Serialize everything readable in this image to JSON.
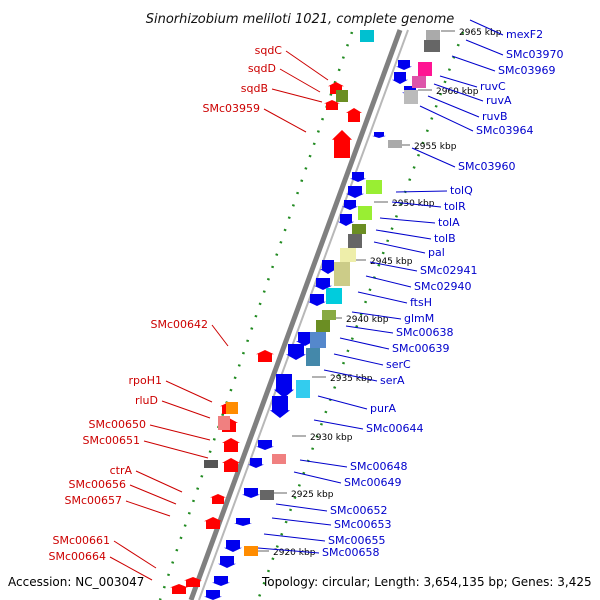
{
  "title": "Sinorhizobium meliloti 1021, complete genome",
  "footer": {
    "accession": "Accession: NC_003047",
    "topology": "Topology: circular; Length: 3,654,135 bp; Genes: 3,425"
  },
  "colors": {
    "backbone": "#808080",
    "minus_label": "#cc0000",
    "plus_label": "#0000cc",
    "minus_arrow": "#ff0000",
    "plus_arrow": "#0000ee",
    "dash": "#228b22"
  },
  "kbp_ticks": [
    "2965 kbp",
    "2960 kbp",
    "2955 kbp",
    "2950 kbp",
    "2945 kbp",
    "2940 kbp",
    "2935 kbp",
    "2930 kbp",
    "2925 kbp",
    "2920 kbp"
  ],
  "left_genes": [
    {
      "name": "sqdC",
      "color": "#cc0000"
    },
    {
      "name": "sqdD",
      "color": "#cc0000"
    },
    {
      "name": "sqdB",
      "color": "#cc0000"
    },
    {
      "name": "SMc03959",
      "color": "#cc0000"
    },
    {
      "name": "SMc00642",
      "color": "#cc0000"
    },
    {
      "name": "rpoH1",
      "color": "#cc0000"
    },
    {
      "name": "rluD",
      "color": "#cc0000"
    },
    {
      "name": "SMc00650",
      "color": "#cc0000"
    },
    {
      "name": "SMc00651",
      "color": "#cc0000"
    },
    {
      "name": "ctrA",
      "color": "#cc0000"
    },
    {
      "name": "SMc00656",
      "color": "#cc0000"
    },
    {
      "name": "SMc00657",
      "color": "#cc0000"
    },
    {
      "name": "SMc00661",
      "color": "#cc0000"
    },
    {
      "name": "SMc00664",
      "color": "#cc0000"
    }
  ],
  "right_genes": [
    {
      "name": "mexF2",
      "color": "#0000cc"
    },
    {
      "name": "SMc03970",
      "color": "#0000cc"
    },
    {
      "name": "SMc03969",
      "color": "#0000cc"
    },
    {
      "name": "ruvC",
      "color": "#0000cc"
    },
    {
      "name": "ruvA",
      "color": "#0000cc"
    },
    {
      "name": "ruvB",
      "color": "#0000cc"
    },
    {
      "name": "SMc03964",
      "color": "#0000cc"
    },
    {
      "name": "SMc03960",
      "color": "#0000cc"
    },
    {
      "name": "tolQ",
      "color": "#0000cc"
    },
    {
      "name": "tolR",
      "color": "#0000cc"
    },
    {
      "name": "tolA",
      "color": "#0000cc"
    },
    {
      "name": "tolB",
      "color": "#0000cc"
    },
    {
      "name": "pal",
      "color": "#0000cc"
    },
    {
      "name": "SMc02941",
      "color": "#0000cc"
    },
    {
      "name": "SMc02940",
      "color": "#0000cc"
    },
    {
      "name": "ftsH",
      "color": "#0000cc"
    },
    {
      "name": "glmM",
      "color": "#0000cc"
    },
    {
      "name": "SMc00638",
      "color": "#0000cc"
    },
    {
      "name": "SMc00639",
      "color": "#0000cc"
    },
    {
      "name": "serC",
      "color": "#0000cc"
    },
    {
      "name": "serA",
      "color": "#0000cc"
    },
    {
      "name": "purA",
      "color": "#0000cc"
    },
    {
      "name": "SMc00644",
      "color": "#0000cc"
    },
    {
      "name": "SMc00648",
      "color": "#0000cc"
    },
    {
      "name": "SMc00649",
      "color": "#0000cc"
    },
    {
      "name": "SMc00652",
      "color": "#0000cc"
    },
    {
      "name": "SMc00653",
      "color": "#0000cc"
    },
    {
      "name": "SMc00655",
      "color": "#0000cc"
    },
    {
      "name": "SMc00658",
      "color": "#0000cc"
    }
  ]
}
